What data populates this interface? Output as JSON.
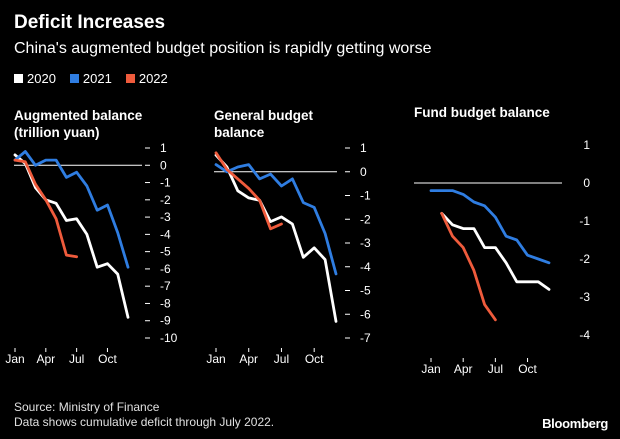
{
  "title": "Deficit Increases",
  "subtitle": "China's augmented budget position is rapidly getting worse",
  "legend": [
    {
      "label": "2020",
      "color": "#ffffff"
    },
    {
      "label": "2021",
      "color": "#2f7de1"
    },
    {
      "label": "2022",
      "color": "#ef5b3c"
    }
  ],
  "footer": {
    "source": "Source: Ministry of Finance",
    "note": "Data shows cumulative deficit through July 2022."
  },
  "brand": "Bloomberg",
  "chart_data": [
    {
      "type": "line",
      "title_lines": [
        "Augmented balance",
        "(trillion yuan)"
      ],
      "x_ticks": [
        "Jan",
        "Apr",
        "Jul",
        "Oct"
      ],
      "x_tick_months": [
        1,
        4,
        7,
        10
      ],
      "ylim": [
        -10,
        1
      ],
      "y_ticks": [
        1,
        0,
        -1,
        -2,
        -3,
        -4,
        -5,
        -6,
        -7,
        -8,
        -9,
        -10
      ],
      "y_tick_labels": [
        "1",
        "0",
        "-1",
        "-2",
        "-3",
        "-4",
        "-5",
        "-6",
        "-7",
        "-8",
        "-9",
        "-10"
      ],
      "y_tick_dash": true,
      "zero_line": true,
      "series": [
        {
          "name": "2020",
          "color": "#ffffff",
          "x": [
            1,
            2,
            3,
            4,
            5,
            6,
            7,
            8,
            9,
            10,
            11,
            12
          ],
          "values": [
            0.6,
            0.1,
            -1.3,
            -2.0,
            -2.2,
            -3.2,
            -3.1,
            -4.0,
            -5.9,
            -5.7,
            -6.3,
            -8.8
          ]
        },
        {
          "name": "2021",
          "color": "#2f7de1",
          "x": [
            1,
            2,
            3,
            4,
            5,
            6,
            7,
            8,
            9,
            10,
            11,
            12
          ],
          "values": [
            0.3,
            0.8,
            0.0,
            0.3,
            0.3,
            -0.7,
            -0.4,
            -1.2,
            -2.6,
            -2.3,
            -3.9,
            -5.9
          ]
        },
        {
          "name": "2022",
          "color": "#ef5b3c",
          "x": [
            1,
            2,
            3,
            4,
            5,
            6,
            7
          ],
          "values": [
            0.3,
            0.2,
            -1.1,
            -2.0,
            -3.1,
            -5.2,
            -5.3
          ]
        }
      ]
    },
    {
      "type": "line",
      "title_lines": [
        "General budget",
        "balance"
      ],
      "x_ticks": [
        "Jan",
        "Apr",
        "Jul",
        "Oct"
      ],
      "x_tick_months": [
        1,
        4,
        7,
        10
      ],
      "ylim": [
        -7,
        1
      ],
      "y_ticks": [
        1,
        0,
        -1,
        -2,
        -3,
        -4,
        -5,
        -6,
        -7
      ],
      "y_tick_labels": [
        "1",
        "0",
        "-1",
        "-2",
        "-3",
        "-4",
        "-5",
        "-6",
        "-7"
      ],
      "y_tick_dash": true,
      "zero_line": true,
      "series": [
        {
          "name": "2020",
          "color": "#ffffff",
          "x": [
            1,
            2,
            3,
            4,
            5,
            6,
            7,
            8,
            9,
            10,
            11,
            12
          ],
          "values": [
            0.7,
            0.2,
            -0.8,
            -1.1,
            -1.2,
            -2.1,
            -1.9,
            -2.2,
            -3.6,
            -3.2,
            -3.7,
            -6.3
          ]
        },
        {
          "name": "2021",
          "color": "#2f7de1",
          "x": [
            1,
            2,
            3,
            4,
            5,
            6,
            7,
            8,
            9,
            10,
            11,
            12
          ],
          "values": [
            0.3,
            0.0,
            0.2,
            0.3,
            -0.3,
            -0.1,
            -0.6,
            -0.3,
            -1.3,
            -1.5,
            -2.6,
            -4.3
          ]
        },
        {
          "name": "2022",
          "color": "#ef5b3c",
          "x": [
            1,
            2,
            3,
            4,
            5,
            6,
            7
          ],
          "values": [
            0.8,
            0.1,
            -0.3,
            -0.7,
            -1.2,
            -2.4,
            -2.2
          ]
        }
      ]
    },
    {
      "type": "line",
      "title_lines": [
        "Fund budget balance"
      ],
      "x_ticks": [
        "Jan",
        "Apr",
        "Jul",
        "Oct"
      ],
      "x_tick_months": [
        1,
        4,
        7,
        10
      ],
      "ylim": [
        -4,
        1
      ],
      "y_ticks": [
        1,
        0,
        -1,
        -2,
        -3,
        -4
      ],
      "y_tick_labels": [
        "1",
        "0",
        "-1",
        "-2",
        "-3",
        "-4"
      ],
      "y_tick_dash": false,
      "zero_line": true,
      "series": [
        {
          "name": "2020",
          "color": "#ffffff",
          "x": [
            2,
            3,
            4,
            5,
            6,
            7,
            8,
            9,
            10,
            11,
            12
          ],
          "values": [
            -0.8,
            -1.1,
            -1.2,
            -1.2,
            -1.7,
            -1.7,
            -2.1,
            -2.6,
            -2.6,
            -2.6,
            -2.8
          ]
        },
        {
          "name": "2021",
          "color": "#2f7de1",
          "x": [
            1,
            2,
            3,
            4,
            5,
            6,
            7,
            8,
            9,
            10,
            11,
            12
          ],
          "values": [
            -0.2,
            -0.2,
            -0.2,
            -0.3,
            -0.5,
            -0.6,
            -0.9,
            -1.4,
            -1.5,
            -1.9,
            -2.0,
            -2.1
          ]
        },
        {
          "name": "2022",
          "color": "#ef5b3c",
          "x": [
            2,
            3,
            4,
            5,
            6,
            7
          ],
          "values": [
            -0.8,
            -1.4,
            -1.7,
            -2.3,
            -3.2,
            -3.6
          ]
        }
      ]
    }
  ]
}
